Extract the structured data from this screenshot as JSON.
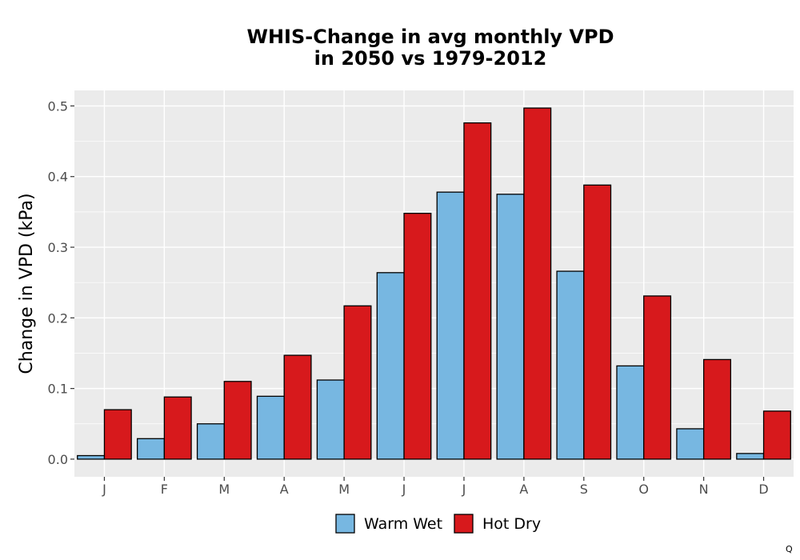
{
  "chart_data": {
    "type": "bar",
    "title_lines": [
      "WHIS-Change in avg monthly VPD",
      "in 2050 vs 1979-2012"
    ],
    "xlabel": "",
    "ylabel": "Change in VPD (kPa)",
    "categories": [
      "J",
      "F",
      "M",
      "A",
      "M",
      "J",
      "J",
      "A",
      "S",
      "O",
      "N",
      "D"
    ],
    "ylim": [
      -0.025,
      0.522
    ],
    "yticks": [
      0.0,
      0.1,
      0.2,
      0.3,
      0.4,
      0.5
    ],
    "ytick_labels": [
      "0.0",
      "0.1",
      "0.2",
      "0.3",
      "0.4",
      "0.5"
    ],
    "grid": true,
    "legend_position": "bottom",
    "series": [
      {
        "name": "Warm Wet",
        "color": "#77b7e1",
        "values": [
          0.005,
          0.029,
          0.05,
          0.089,
          0.112,
          0.264,
          0.378,
          0.375,
          0.266,
          0.132,
          0.043,
          0.008
        ]
      },
      {
        "name": "Hot Dry",
        "color": "#d7191c",
        "values": [
          0.07,
          0.088,
          0.11,
          0.147,
          0.217,
          0.348,
          0.476,
          0.497,
          0.388,
          0.231,
          0.141,
          0.068
        ]
      }
    ]
  },
  "corner_mark": "Q"
}
